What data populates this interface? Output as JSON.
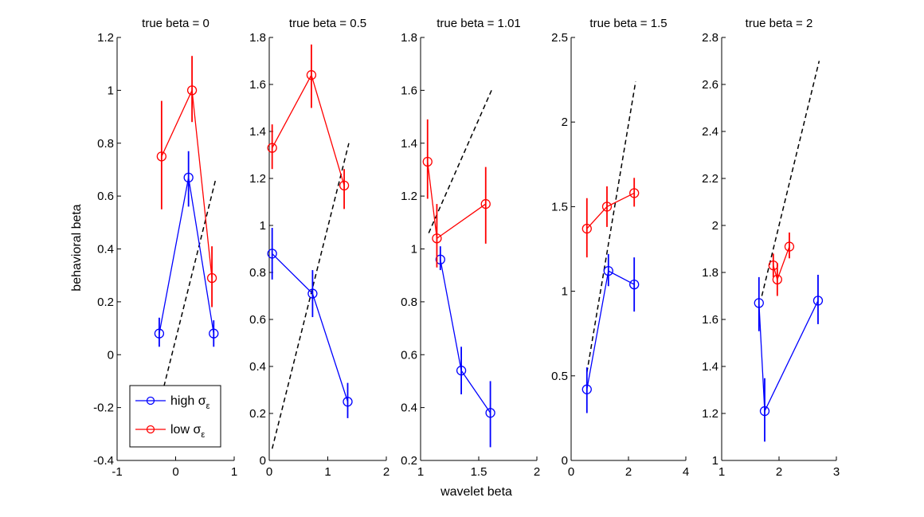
{
  "chart_data": {
    "type": "line",
    "xlabel": "wavelet beta",
    "ylabel": "behavioral beta",
    "legend": {
      "placement": "bottom-left of first panel",
      "entries": [
        {
          "label": "high σ",
          "sub": "ε",
          "color": "#0000ff"
        },
        {
          "label": "low σ",
          "sub": "ε",
          "color": "#ff0000"
        }
      ]
    },
    "colors": {
      "high": "#0000ff",
      "low": "#ff0000",
      "reference": "#000000"
    },
    "panels": [
      {
        "title": "true beta = 0",
        "xlim": [
          -1,
          1
        ],
        "ylim": [
          -0.4,
          1.2
        ],
        "xticks": [
          -1,
          0,
          1
        ],
        "xtick_labels": [
          "-1",
          "0",
          "1"
        ],
        "yticks": [
          -0.4,
          -0.2,
          0,
          0.2,
          0.4,
          0.6,
          0.8,
          1,
          1.2
        ],
        "ytick_labels": [
          "-0.4",
          "-0.2",
          "0",
          "0.2",
          "0.4",
          "0.6",
          "0.8",
          "1",
          "1.2"
        ],
        "series": [
          {
            "key": "high",
            "points": [
              {
                "x": -0.28,
                "y": 0.08,
                "err_low": 0.03,
                "err_high": 0.14
              },
              {
                "x": 0.22,
                "y": 0.67,
                "err_low": 0.56,
                "err_high": 0.77
              },
              {
                "x": 0.65,
                "y": 0.08,
                "err_low": 0.03,
                "err_high": 0.13
              }
            ]
          },
          {
            "key": "low",
            "points": [
              {
                "x": -0.24,
                "y": 0.75,
                "err_low": 0.55,
                "err_high": 0.96
              },
              {
                "x": 0.28,
                "y": 1.0,
                "err_low": 0.88,
                "err_high": 1.13
              },
              {
                "x": 0.62,
                "y": 0.29,
                "err_low": 0.18,
                "err_high": 0.41
              }
            ]
          }
        ],
        "reference_line": [
          [
            -0.2,
            -0.12
          ],
          [
            0.68,
            0.66
          ]
        ]
      },
      {
        "title": "true beta = 0.5",
        "xlim": [
          0,
          2
        ],
        "ylim": [
          0,
          1.8
        ],
        "xticks": [
          0,
          1,
          2
        ],
        "xtick_labels": [
          "0",
          "1",
          "2"
        ],
        "yticks": [
          0,
          0.2,
          0.4,
          0.6,
          0.8,
          1,
          1.2,
          1.4,
          1.6,
          1.8
        ],
        "ytick_labels": [
          "0",
          "0.2",
          "0.4",
          "0.6",
          "0.8",
          "1",
          "1.2",
          "1.4",
          "1.6",
          "1.8"
        ],
        "series": [
          {
            "key": "high",
            "points": [
              {
                "x": 0.05,
                "y": 0.88,
                "err_low": 0.77,
                "err_high": 0.99
              },
              {
                "x": 0.74,
                "y": 0.71,
                "err_low": 0.61,
                "err_high": 0.81
              },
              {
                "x": 1.34,
                "y": 0.25,
                "err_low": 0.18,
                "err_high": 0.33
              }
            ]
          },
          {
            "key": "low",
            "points": [
              {
                "x": 0.05,
                "y": 1.33,
                "err_low": 1.24,
                "err_high": 1.43
              },
              {
                "x": 0.72,
                "y": 1.64,
                "err_low": 1.5,
                "err_high": 1.77
              },
              {
                "x": 1.28,
                "y": 1.17,
                "err_low": 1.07,
                "err_high": 1.24
              }
            ]
          }
        ],
        "reference_line": [
          [
            0.05,
            0.05
          ],
          [
            1.36,
            1.35
          ]
        ]
      },
      {
        "title": "true beta = 1.01",
        "xlim": [
          1,
          2
        ],
        "ylim": [
          0.2,
          1.8
        ],
        "xticks": [
          1,
          1.5,
          2
        ],
        "xtick_labels": [
          "1",
          "1.5",
          "2"
        ],
        "yticks": [
          0.2,
          0.4,
          0.6,
          0.8,
          1,
          1.2,
          1.4,
          1.6,
          1.8
        ],
        "ytick_labels": [
          "0.2",
          "0.4",
          "0.6",
          "0.8",
          "1",
          "1.2",
          "1.4",
          "1.6",
          "1.8"
        ],
        "series": [
          {
            "key": "high",
            "points": [
              {
                "x": 1.17,
                "y": 0.96,
                "err_low": 0.92,
                "err_high": 1.01
              },
              {
                "x": 1.35,
                "y": 0.54,
                "err_low": 0.45,
                "err_high": 0.63
              },
              {
                "x": 1.6,
                "y": 0.38,
                "err_low": 0.25,
                "err_high": 0.5
              }
            ]
          },
          {
            "key": "low",
            "points": [
              {
                "x": 1.06,
                "y": 1.33,
                "err_low": 1.19,
                "err_high": 1.49
              },
              {
                "x": 1.14,
                "y": 1.04,
                "err_low": 0.93,
                "err_high": 1.17
              },
              {
                "x": 1.56,
                "y": 1.17,
                "err_low": 1.02,
                "err_high": 1.31
              }
            ]
          }
        ],
        "reference_line": [
          [
            1.07,
            1.06
          ],
          [
            1.61,
            1.6
          ]
        ]
      },
      {
        "title": "true beta = 1.5",
        "xlim": [
          0,
          4
        ],
        "ylim": [
          0,
          2.5
        ],
        "xticks": [
          0,
          2,
          4
        ],
        "xtick_labels": [
          "0",
          "2",
          "4"
        ],
        "yticks": [
          0,
          0.5,
          1,
          1.5,
          2,
          2.5
        ],
        "ytick_labels": [
          "0",
          "0.5",
          "1",
          "1.5",
          "2",
          "2.5"
        ],
        "series": [
          {
            "key": "high",
            "points": [
              {
                "x": 0.55,
                "y": 0.42,
                "err_low": 0.28,
                "err_high": 0.55
              },
              {
                "x": 1.3,
                "y": 1.12,
                "err_low": 1.03,
                "err_high": 1.22
              },
              {
                "x": 2.2,
                "y": 1.04,
                "err_low": 0.88,
                "err_high": 1.2
              }
            ]
          },
          {
            "key": "low",
            "points": [
              {
                "x": 0.55,
                "y": 1.37,
                "err_low": 1.2,
                "err_high": 1.55
              },
              {
                "x": 1.25,
                "y": 1.5,
                "err_low": 1.38,
                "err_high": 1.62
              },
              {
                "x": 2.2,
                "y": 1.58,
                "err_low": 1.5,
                "err_high": 1.67
              }
            ]
          }
        ],
        "reference_line": [
          [
            0.55,
            0.52
          ],
          [
            2.25,
            2.24
          ]
        ]
      },
      {
        "title": "true beta = 2",
        "xlim": [
          1,
          3
        ],
        "ylim": [
          1,
          2.8
        ],
        "xticks": [
          1,
          2,
          3
        ],
        "xtick_labels": [
          "1",
          "2",
          "3"
        ],
        "yticks": [
          1,
          1.2,
          1.4,
          1.6,
          1.8,
          2,
          2.2,
          2.4,
          2.6,
          2.8
        ],
        "ytick_labels": [
          "1",
          "1.2",
          "1.4",
          "1.6",
          "1.8",
          "2",
          "2.2",
          "2.4",
          "2.6",
          "2.8"
        ],
        "series": [
          {
            "key": "high",
            "points": [
              {
                "x": 1.65,
                "y": 1.67,
                "err_low": 1.55,
                "err_high": 1.78
              },
              {
                "x": 1.75,
                "y": 1.21,
                "err_low": 1.08,
                "err_high": 1.35
              },
              {
                "x": 2.68,
                "y": 1.68,
                "err_low": 1.58,
                "err_high": 1.79
              }
            ]
          },
          {
            "key": "low",
            "points": [
              {
                "x": 1.9,
                "y": 1.83,
                "err_low": 1.78,
                "err_high": 1.88
              },
              {
                "x": 1.97,
                "y": 1.77,
                "err_low": 1.7,
                "err_high": 1.84
              },
              {
                "x": 2.18,
                "y": 1.91,
                "err_low": 1.86,
                "err_high": 1.97
              }
            ]
          }
        ],
        "reference_line": [
          [
            1.7,
            1.7
          ],
          [
            2.7,
            2.7
          ]
        ]
      }
    ]
  }
}
